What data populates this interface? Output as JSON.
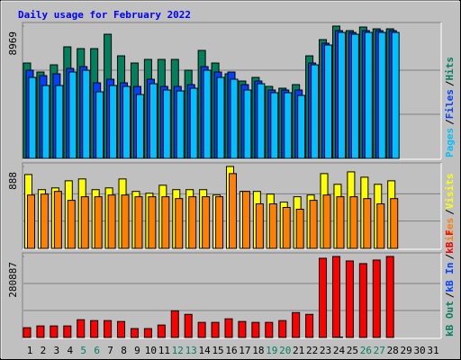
{
  "title": "Daily usage for February 2022",
  "legend_separator": "/",
  "categories": [
    "1",
    "2",
    "3",
    "4",
    "5",
    "6",
    "7",
    "8",
    "9",
    "10",
    "11",
    "12",
    "13",
    "14",
    "15",
    "16",
    "17",
    "18",
    "19",
    "20",
    "21",
    "22",
    "23",
    "24",
    "25",
    "26",
    "27",
    "28",
    "29",
    "30",
    "31"
  ],
  "category_colors": [
    "#000000",
    "#000000",
    "#000000",
    "#000000",
    "#00805c",
    "#00805c",
    "#000000",
    "#000000",
    "#000000",
    "#000000",
    "#000000",
    "#00805c",
    "#00805c",
    "#000000",
    "#000000",
    "#000000",
    "#000000",
    "#000000",
    "#00805c",
    "#00805c",
    "#000000",
    "#000000",
    "#000000",
    "#000000",
    "#000000",
    "#00805c",
    "#00805c",
    "#000000",
    "#000000",
    "#000000",
    "#000000"
  ],
  "chart_data": [
    {
      "type": "bar",
      "ylim": [
        0,
        8969
      ],
      "yticks": [
        8969
      ],
      "series": [
        {
          "name": "Hits",
          "color": "#00805c",
          "values": [
            6466,
            5856,
            6344,
            7564,
            7442,
            7442,
            8418,
            6954,
            6466,
            6710,
            6710,
            6710,
            5978,
            7320,
            6466,
            5734,
            5246,
            5490,
            4880,
            4758,
            5002,
            6954,
            8052,
            8969,
            8662,
            8906,
            8784,
            8784,
            null,
            null,
            null
          ]
        },
        {
          "name": "Files",
          "color": "#0040ff",
          "values": [
            5978,
            5612,
            5734,
            6100,
            6222,
            5124,
            5368,
            5124,
            4880,
            5368,
            4880,
            4880,
            5002,
            6222,
            5856,
            5856,
            5002,
            5246,
            4636,
            4636,
            4636,
            6466,
            7808,
            8662,
            8540,
            8662,
            8662,
            8662,
            null,
            null,
            null
          ]
        },
        {
          "name": "Pages",
          "color": "#00c0ff",
          "values": [
            5490,
            4941,
            4941,
            5856,
            5978,
            4514,
            4941,
            4880,
            4331,
            5063,
            4636,
            4575,
            4758,
            5978,
            5490,
            5368,
            4636,
            5063,
            4453,
            4453,
            4270,
            6344,
            7686,
            8540,
            8418,
            8540,
            8540,
            8540,
            null,
            null,
            null
          ]
        }
      ]
    },
    {
      "type": "bar",
      "ylim": [
        0,
        888
      ],
      "yticks": [
        888
      ],
      "series": [
        {
          "name": "Visits",
          "color": "#ffff00",
          "values": [
            801,
            637,
            656,
            733,
            753,
            637,
            656,
            753,
            618,
            598,
            685,
            637,
            637,
            637,
            579,
            888,
            618,
            618,
            589,
            502,
            560,
            579,
            811,
            695,
            830,
            772,
            695,
            733,
            null,
            null,
            null
          ]
        },
        {
          "name": "Sites",
          "color": "#ff8000",
          "values": [
            579,
            589,
            618,
            521,
            560,
            560,
            579,
            579,
            560,
            560,
            560,
            540,
            560,
            560,
            560,
            811,
            618,
            483,
            483,
            444,
            425,
            521,
            579,
            560,
            560,
            540,
            483,
            540,
            null,
            null,
            null
          ]
        }
      ]
    },
    {
      "type": "bar",
      "ylim": [
        0,
        280887
      ],
      "yticks": [
        280887
      ],
      "series": [
        {
          "name": "kB F",
          "color": "#ff0000",
          "values": [
            33957,
            40131,
            40131,
            40131,
            61740,
            58653,
            58653,
            55566,
            30870,
            30870,
            43218,
            92610,
            80262,
            52479,
            52479,
            64827,
            55566,
            52479,
            52479,
            58653,
            86436,
            80262,
            274743,
            280887,
            265482,
            256221,
            268569,
            280887,
            null,
            null,
            null
          ]
        },
        {
          "name": "kB In",
          "color": "#0040ff",
          "values": [
            0,
            0,
            0,
            0,
            0,
            0,
            0,
            0,
            0,
            0,
            0,
            0,
            0,
            0,
            0,
            0,
            0,
            0,
            0,
            0,
            0,
            0,
            0,
            1500,
            0,
            0,
            0,
            0,
            null,
            null,
            null
          ]
        },
        {
          "name": "kB Out",
          "color": "#00805c",
          "values": [
            0,
            0,
            0,
            0,
            0,
            0,
            0,
            0,
            0,
            0,
            0,
            0,
            0,
            0,
            0,
            0,
            0,
            0,
            0,
            0,
            0,
            0,
            0,
            0,
            0,
            0,
            0,
            0,
            null,
            null,
            null
          ]
        }
      ]
    }
  ]
}
